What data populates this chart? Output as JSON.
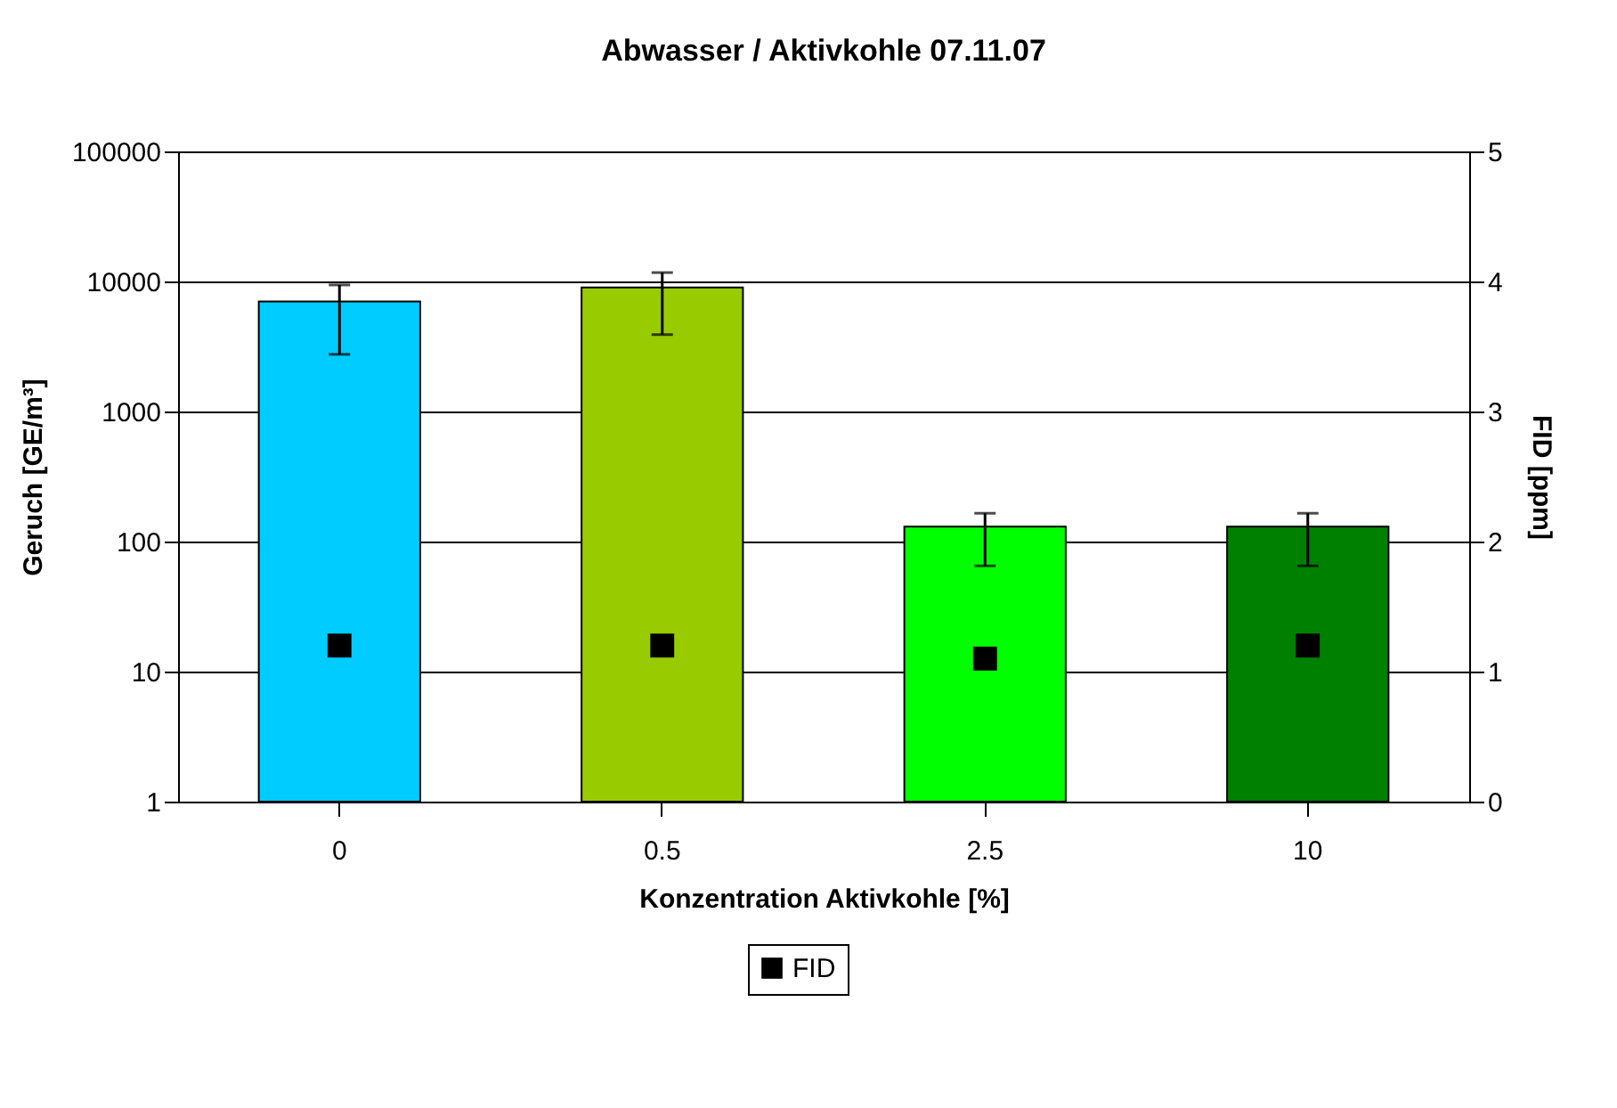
{
  "chart_data": {
    "type": "bar",
    "title": "Abwasser / Aktivkohle 07.11.07",
    "xlabel": "Konzentration Aktivkohle [%]",
    "ylabel": "Geruch [GE/m³]",
    "y2label": "FID [ppm]",
    "categories": [
      "0",
      "0.5",
      "2.5",
      "10"
    ],
    "series": [
      {
        "values": [
          7000,
          9000,
          130,
          130
        ],
        "colors": [
          "#00ccff",
          "#99cc00",
          "#00ff00",
          "#008000"
        ],
        "errors": [
          [
            2750,
            9400
          ],
          [
            3900,
            11700
          ],
          [
            65,
            165
          ],
          [
            65,
            165
          ]
        ]
      },
      {
        "name": "FID",
        "type": "scatter",
        "axis": "y2",
        "color": "#000000",
        "values": [
          1.2,
          1.2,
          1.1,
          1.2
        ]
      }
    ],
    "log": "y",
    "ylim": [
      1,
      100000
    ],
    "yticks": [
      1,
      10,
      100,
      1000,
      10000,
      100000
    ],
    "y2lim": [
      0,
      5
    ],
    "y2ticks": [
      0,
      1,
      2,
      3,
      4,
      5
    ],
    "grid": "y",
    "legend": "bottom",
    "marker": "square"
  }
}
